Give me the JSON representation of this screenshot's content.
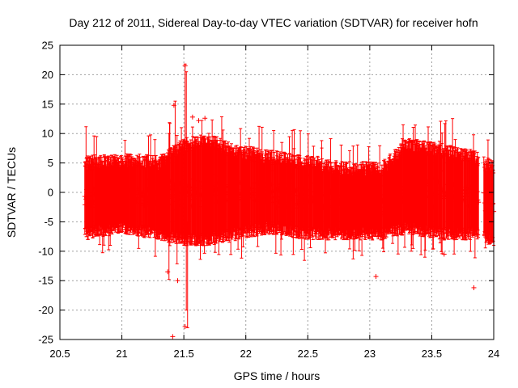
{
  "chart_data": {
    "type": "scatter",
    "title": "Day 212 of 2011, Sidereal Day-to-day VTEC variation (SDTVAR) for receiver hofn",
    "xlabel": "GPS time / hours",
    "ylabel": "SDTVAR / TECUs",
    "xlim": [
      20.5,
      24
    ],
    "ylim": [
      -25,
      25
    ],
    "xticks": [
      "20.5",
      "21",
      "21.5",
      "22",
      "22.5",
      "23",
      "23.5",
      "24"
    ],
    "yticks": [
      "25",
      "20",
      "15",
      "10",
      "5",
      "0",
      "-5",
      "-10",
      "-15",
      "-20",
      "-25"
    ],
    "grid": true,
    "marker": "+",
    "errorbars": true,
    "color": "#ff0000",
    "x_range_of_data": [
      20.7,
      24.0
    ],
    "envelope": [
      {
        "x": 20.7,
        "low": -7,
        "high": 5
      },
      {
        "x": 21.0,
        "low": -6,
        "high": 5.5
      },
      {
        "x": 21.3,
        "low": -7,
        "high": 5
      },
      {
        "x": 21.5,
        "low": -8,
        "high": 8
      },
      {
        "x": 21.7,
        "low": -8,
        "high": 9
      },
      {
        "x": 21.9,
        "low": -7,
        "high": 7
      },
      {
        "x": 22.2,
        "low": -6,
        "high": 6
      },
      {
        "x": 22.5,
        "low": -7,
        "high": 5
      },
      {
        "x": 22.8,
        "low": -7,
        "high": 4
      },
      {
        "x": 23.1,
        "low": -7,
        "high": 4
      },
      {
        "x": 23.3,
        "low": -6,
        "high": 8
      },
      {
        "x": 23.6,
        "low": -7,
        "high": 7
      },
      {
        "x": 23.85,
        "low": -7,
        "high": 6
      },
      {
        "x": 24.0,
        "low": -8,
        "high": 4
      }
    ],
    "outliers": [
      {
        "x": 21.41,
        "y": -24.5
      },
      {
        "x": 21.51,
        "y": 21.5
      },
      {
        "x": 21.51,
        "y": -22.8
      },
      {
        "x": 21.42,
        "y": 14.8
      },
      {
        "x": 21.45,
        "y": -15.0
      },
      {
        "x": 21.57,
        "y": 12.8
      },
      {
        "x": 21.62,
        "y": 12.2
      },
      {
        "x": 21.67,
        "y": 12.6
      },
      {
        "x": 21.37,
        "y": -13.5
      },
      {
        "x": 23.84,
        "y": -16.2
      },
      {
        "x": 23.05,
        "y": -14.3
      },
      {
        "x": 23.6,
        "y": -10.5
      }
    ]
  }
}
